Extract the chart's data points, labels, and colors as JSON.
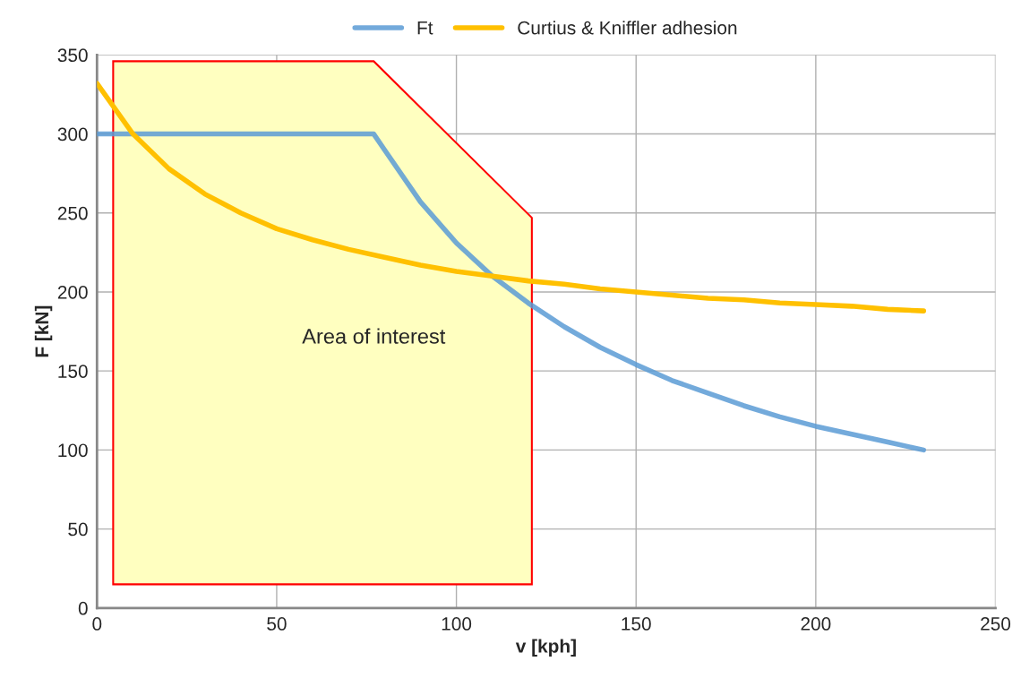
{
  "chart_data": {
    "type": "line",
    "xlabel": "v [kph]",
    "ylabel": "F [kN]",
    "xlim": [
      0,
      250
    ],
    "ylim": [
      0,
      350
    ],
    "xticks": [
      0,
      50,
      100,
      150,
      200,
      250
    ],
    "yticks": [
      0,
      50,
      100,
      150,
      200,
      250,
      300,
      350
    ],
    "grid": true,
    "legend": "top",
    "marker": "none",
    "line_style": "solid",
    "series": [
      {
        "type": "area",
        "color": "#ffffc0",
        "x": [
          4.5,
          4.5,
          77,
          121,
          121,
          4.5
        ],
        "values": [
          15,
          346,
          346,
          247,
          15,
          15
        ]
      },
      {
        "name": "Ft",
        "color": "#5b9bd5",
        "x": [
          0,
          10,
          20,
          30,
          40,
          50,
          60,
          70,
          77,
          80,
          90,
          100,
          110,
          120,
          130,
          140,
          150,
          160,
          170,
          180,
          190,
          200,
          210,
          220,
          230
        ],
        "values": [
          300,
          300,
          300,
          300,
          300,
          300,
          300,
          300,
          300,
          290,
          257,
          231,
          210,
          193,
          178,
          165,
          154,
          144,
          136,
          128,
          121,
          115,
          110,
          105,
          100
        ]
      },
      {
        "name": "Curtius & Kniffler adhesion",
        "color": "#ffc000",
        "x": [
          0,
          10,
          20,
          30,
          40,
          50,
          60,
          70,
          80,
          90,
          100,
          110,
          120,
          130,
          140,
          150,
          160,
          170,
          180,
          190,
          200,
          210,
          220,
          230
        ],
        "values": [
          332,
          300,
          278,
          262,
          250,
          240,
          233,
          227,
          222,
          217,
          213,
          210,
          207,
          205,
          202,
          200,
          198,
          196,
          195,
          193,
          192,
          191,
          189,
          188
        ]
      }
    ],
    "annotations": [
      "Area of interest"
    ]
  }
}
